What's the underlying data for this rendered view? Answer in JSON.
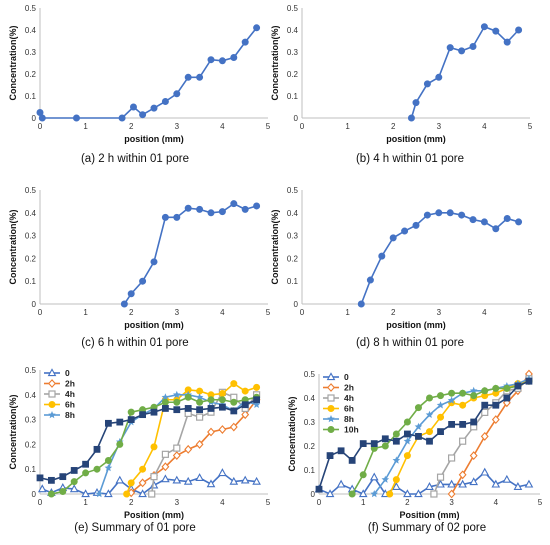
{
  "chart_data": [
    {
      "type": "line",
      "caption": "(a) 2 h within 01 pore",
      "xlabel": "position (mm)",
      "ylabel": "Concentration(%)",
      "xlim": [
        0,
        5
      ],
      "ylim": [
        0,
        0.5
      ],
      "xticks": [
        0,
        1,
        2,
        3,
        4,
        5
      ],
      "yticks": [
        0,
        0.1,
        0.2,
        0.3,
        0.4,
        0.5
      ],
      "series": [
        {
          "color": "#4472c4",
          "marker": "circle",
          "x": [
            0,
            0.05,
            0.8,
            1.8,
            2.05,
            2.25,
            2.5,
            2.75,
            3.0,
            3.25,
            3.5,
            3.75,
            4.0,
            4.25,
            4.5,
            4.75
          ],
          "y": [
            0.025,
            0,
            0,
            0,
            0.05,
            0.015,
            0.045,
            0.075,
            0.11,
            0.185,
            0.185,
            0.265,
            0.26,
            0.275,
            0.345,
            0.41
          ]
        }
      ]
    },
    {
      "type": "line",
      "caption": "(b) 4 h within 01 pore",
      "xlabel": "position (mm)",
      "ylabel": "Concentration(%)",
      "xlim": [
        0,
        5
      ],
      "ylim": [
        0,
        0.5
      ],
      "xticks": [
        0,
        1,
        2,
        3,
        4,
        5
      ],
      "yticks": [
        0,
        0.1,
        0.2,
        0.3,
        0.4,
        0.5
      ],
      "series": [
        {
          "color": "#4472c4",
          "marker": "circle",
          "x": [
            2.4,
            2.5,
            2.75,
            3.0,
            3.25,
            3.5,
            3.75,
            4.0,
            4.25,
            4.5,
            4.75
          ],
          "y": [
            0,
            0.07,
            0.155,
            0.185,
            0.32,
            0.305,
            0.325,
            0.415,
            0.395,
            0.345,
            0.4
          ]
        }
      ]
    },
    {
      "type": "line",
      "caption": "(c) 6 h within 01 pore",
      "xlabel": "position (mm)",
      "ylabel": "Concentration(%)",
      "xlim": [
        0,
        5
      ],
      "ylim": [
        0,
        0.5
      ],
      "xticks": [
        0,
        1,
        2,
        3,
        4,
        5
      ],
      "yticks": [
        0,
        0.1,
        0.2,
        0.3,
        0.4,
        0.5
      ],
      "series": [
        {
          "color": "#4472c4",
          "marker": "circle",
          "x": [
            1.85,
            2.0,
            2.25,
            2.5,
            2.75,
            3.0,
            3.25,
            3.5,
            3.75,
            4.0,
            4.25,
            4.5,
            4.75
          ],
          "y": [
            0,
            0.045,
            0.1,
            0.185,
            0.38,
            0.38,
            0.42,
            0.415,
            0.4,
            0.405,
            0.44,
            0.415,
            0.43
          ]
        }
      ]
    },
    {
      "type": "line",
      "caption": "(d) 8 h within 01 pore",
      "xlabel": "position (mm)",
      "ylabel": "Concentration(%)",
      "xlim": [
        0,
        5
      ],
      "ylim": [
        0,
        0.5
      ],
      "xticks": [
        0,
        1,
        2,
        3,
        4,
        5
      ],
      "yticks": [
        0,
        0.1,
        0.2,
        0.3,
        0.4,
        0.5
      ],
      "series": [
        {
          "color": "#4472c4",
          "marker": "circle",
          "x": [
            1.3,
            1.5,
            1.75,
            2.0,
            2.25,
            2.5,
            2.75,
            3.0,
            3.25,
            3.5,
            3.75,
            4.0,
            4.25,
            4.5,
            4.75
          ],
          "y": [
            0,
            0.105,
            0.21,
            0.29,
            0.32,
            0.345,
            0.39,
            0.4,
            0.4,
            0.39,
            0.37,
            0.36,
            0.33,
            0.375,
            0.36
          ]
        }
      ]
    },
    {
      "type": "line",
      "caption": "(e) Summary of 01 pore",
      "xlabel": "Position (mm)",
      "ylabel": "Concentration(%)",
      "xlim": [
        0,
        5
      ],
      "ylim": [
        0,
        0.5
      ],
      "xticks": [
        0,
        1,
        2,
        3,
        4,
        5
      ],
      "yticks": [
        0,
        0.1,
        0.2,
        0.3,
        0.4,
        0.5
      ],
      "legend": "top-left",
      "series": [
        {
          "name": "0",
          "color": "#4472c4",
          "marker": "triangle-open",
          "x": [
            0.05,
            0.25,
            0.5,
            0.75,
            1.0,
            1.25,
            1.5,
            1.75,
            2.0,
            2.25,
            2.5,
            2.75,
            3.0,
            3.25,
            3.5,
            3.75,
            4.0,
            4.25,
            4.5,
            4.75
          ],
          "y": [
            0.02,
            0.005,
            0.025,
            0.02,
            0.0,
            0.005,
            0.0,
            0.055,
            0.02,
            0.0,
            0.035,
            0.06,
            0.055,
            0.05,
            0.065,
            0.04,
            0.085,
            0.05,
            0.055,
            0.05
          ]
        },
        {
          "name": "2h",
          "color": "#ed7d31",
          "marker": "diamond-open",
          "x": [
            2.0,
            2.25,
            2.5,
            2.75,
            3.0,
            3.25,
            3.5,
            3.75,
            4.0,
            4.25,
            4.5,
            4.75
          ],
          "y": [
            0.005,
            0.045,
            0.075,
            0.11,
            0.155,
            0.18,
            0.2,
            0.25,
            0.26,
            0.27,
            0.32,
            0.38
          ]
        },
        {
          "name": "4h",
          "color": "#a5a5a5",
          "marker": "square-open",
          "x": [
            2.45,
            2.5,
            2.75,
            3.0,
            3.25,
            3.5,
            3.75,
            4.0,
            4.25,
            4.5,
            4.75
          ],
          "y": [
            0.0,
            0.07,
            0.16,
            0.185,
            0.325,
            0.31,
            0.33,
            0.41,
            0.39,
            0.345,
            0.4
          ]
        },
        {
          "name": "6h",
          "color": "#ffc000",
          "marker": "circle",
          "x": [
            1.9,
            2.0,
            2.25,
            2.5,
            2.75,
            3.0,
            3.25,
            3.5,
            3.75,
            4.0,
            4.25,
            4.5,
            4.75
          ],
          "y": [
            0.0,
            0.045,
            0.1,
            0.19,
            0.38,
            0.38,
            0.42,
            0.415,
            0.4,
            0.405,
            0.445,
            0.415,
            0.43
          ]
        },
        {
          "name": "8h",
          "color": "#5b9bd5",
          "marker": "star",
          "x": [
            1.3,
            1.5,
            1.75,
            2.0,
            2.25,
            2.5,
            2.75,
            3.0,
            3.25,
            3.5,
            3.75,
            4.0,
            4.25,
            4.5,
            4.75
          ],
          "y": [
            0.0,
            0.105,
            0.21,
            0.29,
            0.32,
            0.345,
            0.39,
            0.4,
            0.4,
            0.39,
            0.37,
            0.36,
            0.335,
            0.375,
            0.36
          ]
        },
        {
          "color": "#70ad47",
          "marker": "circle",
          "x": [
            0.25,
            0.5,
            0.75,
            1.0,
            1.25,
            1.5,
            1.75,
            2.0,
            2.25,
            2.5,
            2.75,
            3.0,
            3.25,
            3.5,
            3.75,
            4.0,
            4.25,
            4.5,
            4.75
          ],
          "y": [
            0.0,
            0.01,
            0.05,
            0.085,
            0.1,
            0.135,
            0.2,
            0.33,
            0.34,
            0.35,
            0.37,
            0.37,
            0.39,
            0.37,
            0.38,
            0.38,
            0.37,
            0.38,
            0.39
          ]
        },
        {
          "color": "#264478",
          "marker": "square",
          "x": [
            0.0,
            0.25,
            0.5,
            0.75,
            1.0,
            1.25,
            1.5,
            1.75,
            2.0,
            2.25,
            2.5,
            2.75,
            3.0,
            3.25,
            3.5,
            3.75,
            4.0,
            4.25,
            4.5,
            4.75
          ],
          "y": [
            0.065,
            0.055,
            0.07,
            0.095,
            0.12,
            0.18,
            0.285,
            0.29,
            0.3,
            0.32,
            0.33,
            0.345,
            0.34,
            0.345,
            0.34,
            0.345,
            0.35,
            0.335,
            0.36,
            0.38
          ]
        }
      ]
    },
    {
      "type": "line",
      "caption": "(f) Summary of 02 pore",
      "xlabel": "Position (mm)",
      "ylabel": "Concentration(%)",
      "xlim": [
        0,
        5
      ],
      "ylim": [
        0,
        0.5
      ],
      "xticks": [
        0,
        1,
        2,
        3,
        4,
        5
      ],
      "yticks": [
        0,
        0.1,
        0.2,
        0.3,
        0.4,
        0.5
      ],
      "legend": "top-left",
      "series": [
        {
          "name": "0",
          "color": "#4472c4",
          "marker": "triangle-open",
          "x": [
            0.0,
            0.25,
            0.5,
            0.75,
            1.0,
            1.25,
            1.5,
            1.75,
            2.0,
            2.25,
            2.5,
            2.75,
            3.0,
            3.25,
            3.5,
            3.75,
            4.0,
            4.25,
            4.5,
            4.75
          ],
          "y": [
            0.02,
            0.0,
            0.04,
            0.02,
            0.0,
            0.07,
            0.0,
            0.03,
            0.0,
            0.0,
            0.03,
            0.04,
            0.04,
            0.04,
            0.05,
            0.09,
            0.04,
            0.06,
            0.03,
            0.04
          ]
        },
        {
          "name": "2h",
          "color": "#ed7d31",
          "marker": "diamond-open",
          "x": [
            3.0,
            3.25,
            3.5,
            3.75,
            4.0,
            4.25,
            4.5,
            4.75
          ],
          "y": [
            0.0,
            0.08,
            0.16,
            0.24,
            0.31,
            0.38,
            0.43,
            0.5
          ]
        },
        {
          "name": "4h",
          "color": "#a5a5a5",
          "marker": "square-open",
          "x": [
            2.6,
            2.75,
            3.0,
            3.25,
            3.5,
            3.75,
            4.0,
            4.25,
            4.5,
            4.75
          ],
          "y": [
            0.0,
            0.07,
            0.15,
            0.22,
            0.28,
            0.34,
            0.38,
            0.43,
            0.44,
            0.48
          ]
        },
        {
          "name": "6h",
          "color": "#ffc000",
          "marker": "circle",
          "x": [
            1.6,
            1.75,
            2.0,
            2.25,
            2.5,
            2.75,
            3.0,
            3.25,
            3.5,
            3.75,
            4.0,
            4.25,
            4.5,
            4.75
          ],
          "y": [
            0.0,
            0.06,
            0.16,
            0.24,
            0.26,
            0.32,
            0.38,
            0.37,
            0.4,
            0.41,
            0.42,
            0.44,
            0.46,
            0.47
          ]
        },
        {
          "name": "8h",
          "color": "#5b9bd5",
          "marker": "star",
          "x": [
            1.25,
            1.5,
            1.75,
            2.0,
            2.25,
            2.5,
            2.75,
            3.0,
            3.25,
            3.5,
            3.75,
            4.0,
            4.25,
            4.5,
            4.75
          ],
          "y": [
            0.0,
            0.06,
            0.14,
            0.22,
            0.28,
            0.33,
            0.37,
            0.39,
            0.42,
            0.43,
            0.43,
            0.44,
            0.45,
            0.46,
            0.48
          ]
        },
        {
          "name": "10h",
          "color": "#70ad47",
          "marker": "circle",
          "x": [
            0.75,
            1.0,
            1.25,
            1.5,
            1.75,
            2.0,
            2.25,
            2.5,
            2.75,
            3.0,
            3.25,
            3.5,
            3.75,
            4.0,
            4.25,
            4.5,
            4.75
          ],
          "y": [
            0.0,
            0.08,
            0.19,
            0.2,
            0.25,
            0.3,
            0.36,
            0.4,
            0.41,
            0.42,
            0.42,
            0.41,
            0.43,
            0.44,
            0.44,
            0.45,
            0.47
          ]
        },
        {
          "color": "#264478",
          "marker": "square",
          "x": [
            0.0,
            0.25,
            0.5,
            0.75,
            1.0,
            1.25,
            1.5,
            1.75,
            2.0,
            2.25,
            2.5,
            2.75,
            3.0,
            3.25,
            3.5,
            3.75,
            4.0,
            4.25,
            4.5,
            4.75
          ],
          "y": [
            0.02,
            0.16,
            0.18,
            0.14,
            0.21,
            0.21,
            0.23,
            0.22,
            0.25,
            0.24,
            0.22,
            0.26,
            0.29,
            0.29,
            0.3,
            0.37,
            0.37,
            0.4,
            0.45,
            0.47
          ]
        }
      ]
    }
  ]
}
